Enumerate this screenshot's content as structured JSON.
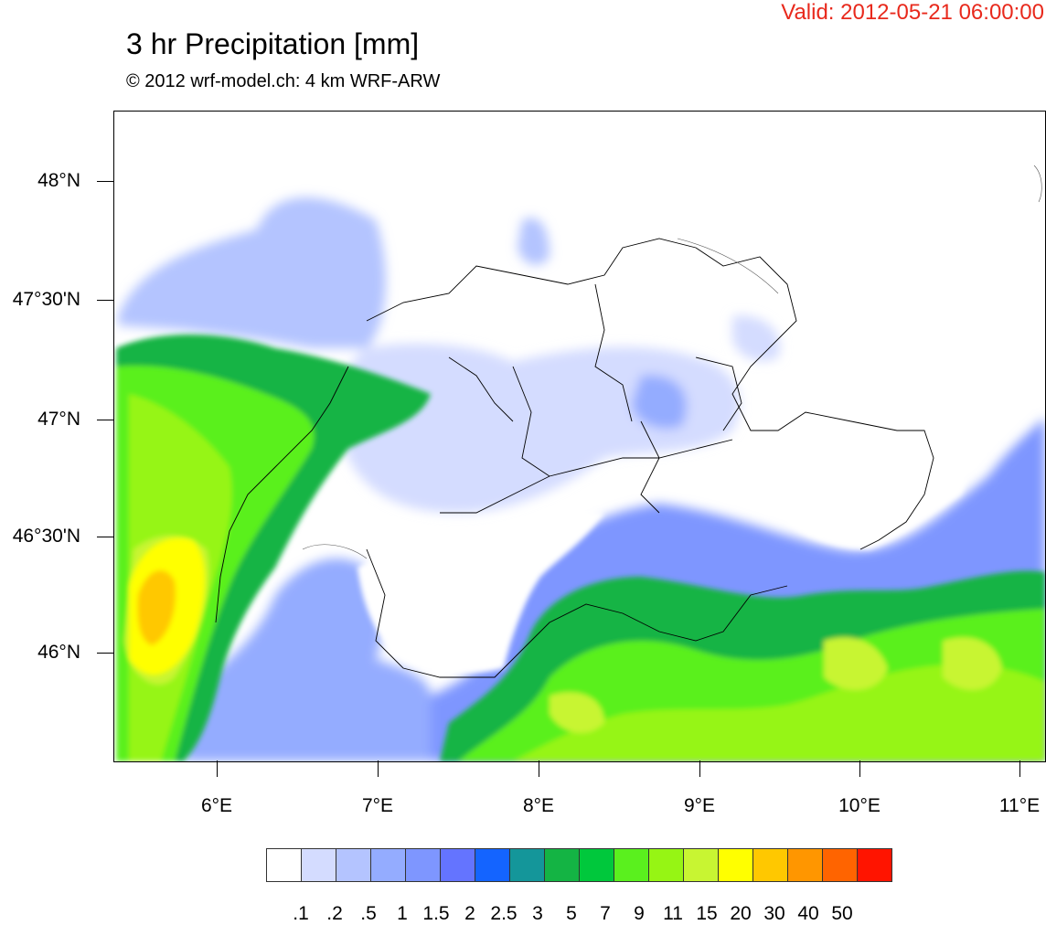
{
  "header": {
    "valid_text": "Valid: 2012-05-21 06:00:00",
    "title": "3 hr Precipitation [mm]",
    "subtitle": "© 2012 wrf-model.ch: 4 km WRF-ARW"
  },
  "axes": {
    "y_labels": [
      "48°N",
      "47°30'N",
      "47°N",
      "46°30'N",
      "46°N"
    ],
    "x_labels": [
      "6°E",
      "7°E",
      "8°E",
      "9°E",
      "10°E",
      "11°E"
    ]
  },
  "legend": {
    "levels": [
      ".1",
      ".2",
      ".5",
      "1",
      "1.5",
      "2",
      "2.5",
      "3",
      "5",
      "7",
      "9",
      "11",
      "15",
      "20",
      "30",
      "40",
      "50"
    ],
    "colors": [
      "#ffffff",
      "#d4dcff",
      "#b4c4ff",
      "#94acff",
      "#7e96ff",
      "#6474ff",
      "#1464ff",
      "#14969a",
      "#14b444",
      "#00c83c",
      "#5af01e",
      "#96f514",
      "#c8f532",
      "#ffff00",
      "#ffc800",
      "#ff9600",
      "#ff6400",
      "#ff1400"
    ]
  },
  "chart_data": {
    "type": "heatmap",
    "title": "3 hr Precipitation [mm]",
    "subtitle": "© 2012 wrf-model.ch: 4 km WRF-ARW",
    "valid_time": "2012-05-21 06:00:00",
    "unit": "mm",
    "y_ticks": [
      "48°N",
      "47°30'N",
      "47°N",
      "46°30'N",
      "46°N"
    ],
    "x_ticks": [
      "6°E",
      "7°E",
      "8°E",
      "9°E",
      "10°E",
      "11°E"
    ],
    "levels": [
      0.1,
      0.2,
      0.5,
      1,
      1.5,
      2,
      2.5,
      3,
      5,
      7,
      9,
      11,
      15,
      20,
      30,
      40,
      50
    ]
  }
}
